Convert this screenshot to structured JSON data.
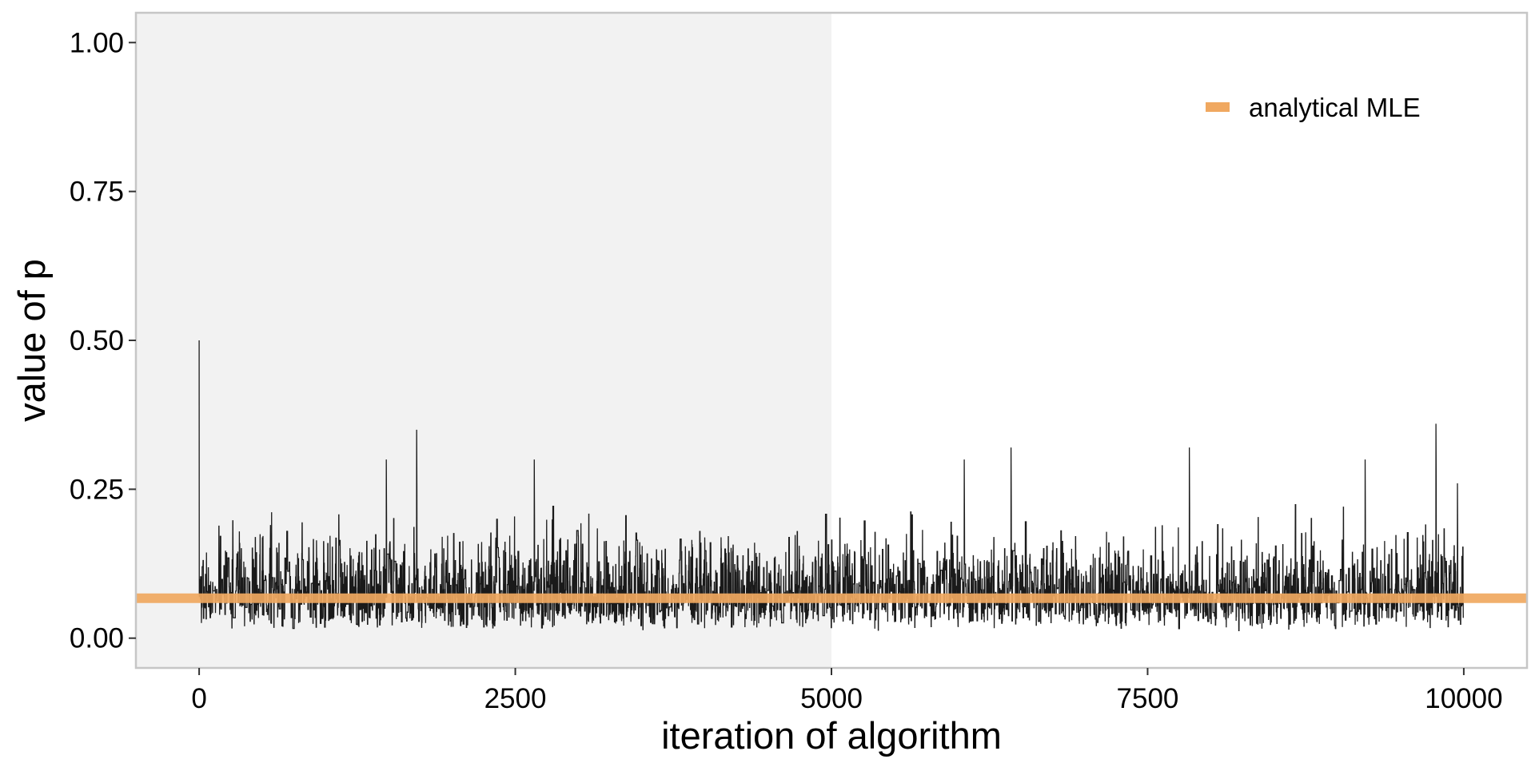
{
  "chart_data": {
    "type": "line",
    "title": "",
    "xlabel": "iteration of algorithm",
    "ylabel": "value of p",
    "xlim": [
      -500,
      10500
    ],
    "ylim": [
      -0.05,
      1.05
    ],
    "x_ticks": [
      0,
      2500,
      5000,
      7500,
      10000
    ],
    "x_tick_labels": [
      "0",
      "2500",
      "5000",
      "7500",
      "10000"
    ],
    "y_ticks": [
      0.0,
      0.25,
      0.5,
      0.75,
      1.0
    ],
    "y_tick_labels": [
      "0.00",
      "0.25",
      "0.50",
      "0.75",
      "1.00"
    ],
    "grid": false,
    "burn_in_region": {
      "x_start": 0,
      "x_end": 5000,
      "color": "#f2f2f2"
    },
    "trace": {
      "n_iterations": 10000,
      "start_value": 0.5,
      "typical_range": [
        0.01,
        0.27
      ],
      "peaks": [
        {
          "x": 1720,
          "y": 0.35
        },
        {
          "x": 1480,
          "y": 0.3
        },
        {
          "x": 2650,
          "y": 0.3
        },
        {
          "x": 6050,
          "y": 0.3
        },
        {
          "x": 6420,
          "y": 0.32
        },
        {
          "x": 7830,
          "y": 0.32
        },
        {
          "x": 9220,
          "y": 0.3
        },
        {
          "x": 9780,
          "y": 0.36
        },
        {
          "x": 9950,
          "y": 0.26
        }
      ],
      "color": "#1a1a1a"
    },
    "series": [
      {
        "name": "analytical MLE",
        "value": 0.067,
        "color": "#f0a860"
      }
    ],
    "legend_position": "top-right"
  }
}
